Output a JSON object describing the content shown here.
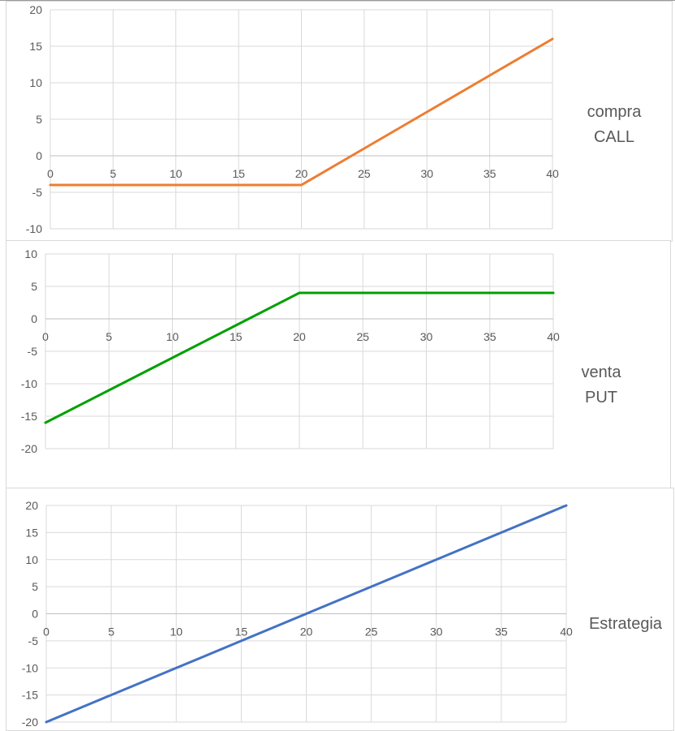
{
  "chart_data": [
    {
      "type": "line",
      "title": "",
      "legend": [
        "compra",
        "CALL"
      ],
      "legend_position": "right",
      "xlabel": "",
      "ylabel": "",
      "xlim": [
        0,
        40
      ],
      "ylim": [
        -10,
        20
      ],
      "x_ticks": [
        0,
        5,
        10,
        15,
        20,
        25,
        30,
        35,
        40
      ],
      "y_ticks": [
        20,
        15,
        10,
        5,
        0,
        -5,
        -10
      ],
      "grid": true,
      "color": "#ED7D31",
      "series": [
        {
          "name": "compra CALL",
          "x": [
            0,
            5,
            10,
            15,
            19,
            20,
            25,
            30,
            35,
            40
          ],
          "values": [
            -4,
            -4,
            -4,
            -4,
            -4,
            -4,
            1,
            6,
            11,
            16
          ]
        }
      ]
    },
    {
      "type": "line",
      "title": "",
      "legend": [
        "venta",
        "PUT"
      ],
      "legend_position": "right",
      "xlabel": "",
      "ylabel": "",
      "xlim": [
        0,
        40
      ],
      "ylim": [
        -20,
        10
      ],
      "x_ticks": [
        0,
        5,
        10,
        15,
        20,
        25,
        30,
        35,
        40
      ],
      "y_ticks": [
        10,
        5,
        0,
        -5,
        -10,
        -15,
        -20
      ],
      "grid": true,
      "color": "#00A000",
      "series": [
        {
          "name": "venta PUT",
          "x": [
            0,
            5,
            10,
            15,
            20,
            25,
            30,
            35,
            40
          ],
          "values": [
            -16,
            -11,
            -6,
            -1,
            4,
            4,
            4,
            4,
            4
          ]
        }
      ]
    },
    {
      "type": "line",
      "title": "",
      "legend": [
        "Estrategia"
      ],
      "legend_position": "right",
      "xlabel": "",
      "ylabel": "",
      "xlim": [
        0,
        40
      ],
      "ylim": [
        -20,
        20
      ],
      "x_ticks": [
        0,
        5,
        10,
        15,
        20,
        25,
        30,
        35,
        40
      ],
      "y_ticks": [
        20,
        15,
        10,
        5,
        0,
        -5,
        -10,
        -15,
        -20
      ],
      "grid": true,
      "color": "#4472C4",
      "series": [
        {
          "name": "Estrategia",
          "x": [
            0,
            5,
            10,
            15,
            20,
            25,
            30,
            35,
            40
          ],
          "values": [
            -20,
            -15,
            -10,
            -5,
            0,
            5,
            10,
            15,
            20
          ]
        }
      ]
    }
  ],
  "charts": {
    "call": {
      "legend_line1": "compra",
      "legend_line2": "CALL"
    },
    "put": {
      "legend_line1": "venta",
      "legend_line2": "PUT"
    },
    "strategy": {
      "legend_line1": "Estrategia"
    }
  }
}
